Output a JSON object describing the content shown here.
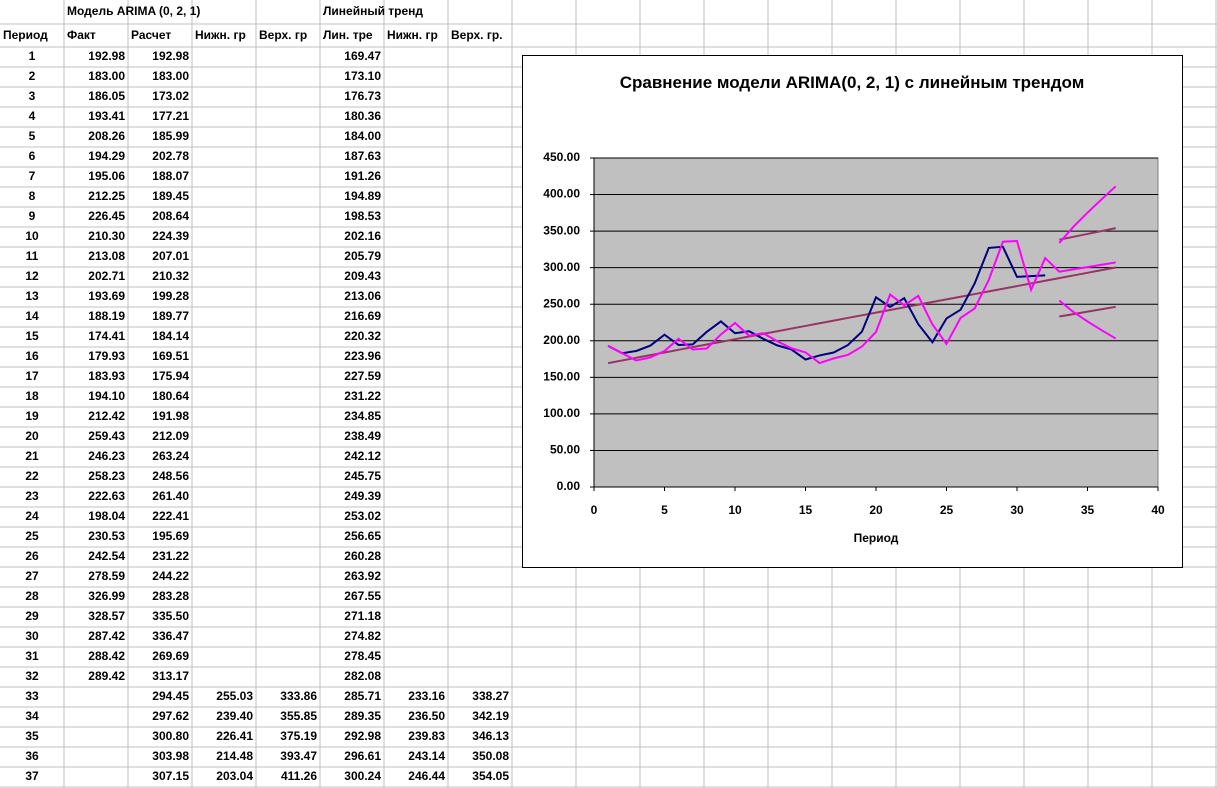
{
  "table": {
    "title_row": [
      null,
      "Модель ARIMA (0, 2, 1)",
      null,
      null,
      null,
      "Линейный тренд",
      null,
      null
    ],
    "header": [
      "Период",
      "Факт",
      "Расчет",
      "Нижн. гр",
      "Верх. гр",
      "Лин. тре",
      "Нижн. гр",
      "Верх. гр."
    ],
    "rows": [
      [
        1,
        "192.98",
        "192.98",
        null,
        null,
        "169.47",
        null,
        null
      ],
      [
        2,
        "183.00",
        "183.00",
        null,
        null,
        "173.10",
        null,
        null
      ],
      [
        3,
        "186.05",
        "173.02",
        null,
        null,
        "176.73",
        null,
        null
      ],
      [
        4,
        "193.41",
        "177.21",
        null,
        null,
        "180.36",
        null,
        null
      ],
      [
        5,
        "208.26",
        "185.99",
        null,
        null,
        "184.00",
        null,
        null
      ],
      [
        6,
        "194.29",
        "202.78",
        null,
        null,
        "187.63",
        null,
        null
      ],
      [
        7,
        "195.06",
        "188.07",
        null,
        null,
        "191.26",
        null,
        null
      ],
      [
        8,
        "212.25",
        "189.45",
        null,
        null,
        "194.89",
        null,
        null
      ],
      [
        9,
        "226.45",
        "208.64",
        null,
        null,
        "198.53",
        null,
        null
      ],
      [
        10,
        "210.30",
        "224.39",
        null,
        null,
        "202.16",
        null,
        null
      ],
      [
        11,
        "213.08",
        "207.01",
        null,
        null,
        "205.79",
        null,
        null
      ],
      [
        12,
        "202.71",
        "210.32",
        null,
        null,
        "209.43",
        null,
        null
      ],
      [
        13,
        "193.69",
        "199.28",
        null,
        null,
        "213.06",
        null,
        null
      ],
      [
        14,
        "188.19",
        "189.77",
        null,
        null,
        "216.69",
        null,
        null
      ],
      [
        15,
        "174.41",
        "184.14",
        null,
        null,
        "220.32",
        null,
        null
      ],
      [
        16,
        "179.93",
        "169.51",
        null,
        null,
        "223.96",
        null,
        null
      ],
      [
        17,
        "183.93",
        "175.94",
        null,
        null,
        "227.59",
        null,
        null
      ],
      [
        18,
        "194.10",
        "180.64",
        null,
        null,
        "231.22",
        null,
        null
      ],
      [
        19,
        "212.42",
        "191.98",
        null,
        null,
        "234.85",
        null,
        null
      ],
      [
        20,
        "259.43",
        "212.09",
        null,
        null,
        "238.49",
        null,
        null
      ],
      [
        21,
        "246.23",
        "263.24",
        null,
        null,
        "242.12",
        null,
        null
      ],
      [
        22,
        "258.23",
        "248.56",
        null,
        null,
        "245.75",
        null,
        null
      ],
      [
        23,
        "222.63",
        "261.40",
        null,
        null,
        "249.39",
        null,
        null
      ],
      [
        24,
        "198.04",
        "222.41",
        null,
        null,
        "253.02",
        null,
        null
      ],
      [
        25,
        "230.53",
        "195.69",
        null,
        null,
        "256.65",
        null,
        null
      ],
      [
        26,
        "242.54",
        "231.22",
        null,
        null,
        "260.28",
        null,
        null
      ],
      [
        27,
        "278.59",
        "244.22",
        null,
        null,
        "263.92",
        null,
        null
      ],
      [
        28,
        "326.99",
        "283.28",
        null,
        null,
        "267.55",
        null,
        null
      ],
      [
        29,
        "328.57",
        "335.50",
        null,
        null,
        "271.18",
        null,
        null
      ],
      [
        30,
        "287.42",
        "336.47",
        null,
        null,
        "274.82",
        null,
        null
      ],
      [
        31,
        "288.42",
        "269.69",
        null,
        null,
        "278.45",
        null,
        null
      ],
      [
        32,
        "289.42",
        "313.17",
        null,
        null,
        "282.08",
        null,
        null
      ],
      [
        33,
        null,
        "294.45",
        "255.03",
        "333.86",
        "285.71",
        "233.16",
        "338.27"
      ],
      [
        34,
        null,
        "297.62",
        "239.40",
        "355.85",
        "289.35",
        "236.50",
        "342.19"
      ],
      [
        35,
        null,
        "300.80",
        "226.41",
        "375.19",
        "292.98",
        "239.83",
        "346.13"
      ],
      [
        36,
        null,
        "303.98",
        "214.48",
        "393.47",
        "296.61",
        "243.14",
        "350.08"
      ],
      [
        37,
        null,
        "307.15",
        "203.04",
        "411.26",
        "300.24",
        "246.44",
        "354.05"
      ]
    ]
  },
  "chart_data": {
    "type": "line",
    "title": "Сравнение модели ARIMA(0, 2, 1) с линейным трендом",
    "x_label": "Период",
    "xlim": [
      0,
      40
    ],
    "xticks": [
      0,
      5,
      10,
      15,
      20,
      25,
      30,
      35,
      40
    ],
    "ylim": [
      0,
      450
    ],
    "yticks": [
      {
        "value": 0,
        "label": "0.00"
      },
      {
        "value": 50,
        "label": "50.00"
      },
      {
        "value": 100,
        "label": "100.00"
      },
      {
        "value": 150,
        "label": "150.00"
      },
      {
        "value": 200,
        "label": "200.00"
      },
      {
        "value": 250,
        "label": "250.00"
      },
      {
        "value": 300,
        "label": "300.00"
      },
      {
        "value": 350,
        "label": "350.00"
      },
      {
        "value": 400,
        "label": "400.00"
      },
      {
        "value": 450,
        "label": "450.00"
      }
    ],
    "grid": true,
    "x": [
      1,
      2,
      3,
      4,
      5,
      6,
      7,
      8,
      9,
      10,
      11,
      12,
      13,
      14,
      15,
      16,
      17,
      18,
      19,
      20,
      21,
      22,
      23,
      24,
      25,
      26,
      27,
      28,
      29,
      30,
      31,
      32,
      33,
      34,
      35,
      36,
      37
    ],
    "series": [
      {
        "color": "#000080",
        "values": [
          192.98,
          183.0,
          186.05,
          193.41,
          208.26,
          194.29,
          195.06,
          212.25,
          226.45,
          210.3,
          213.08,
          202.71,
          193.69,
          188.19,
          174.41,
          179.93,
          183.93,
          194.1,
          212.42,
          259.43,
          246.23,
          258.23,
          222.63,
          198.04,
          230.53,
          242.54,
          278.59,
          326.99,
          328.57,
          287.42,
          288.42,
          289.42,
          null,
          null,
          null,
          null,
          null
        ]
      },
      {
        "color": "#ff00ff",
        "values": [
          192.98,
          183.0,
          173.02,
          177.21,
          185.99,
          202.78,
          188.07,
          189.45,
          208.64,
          224.39,
          207.01,
          210.32,
          199.28,
          189.77,
          184.14,
          169.51,
          175.94,
          180.64,
          191.98,
          212.09,
          263.24,
          248.56,
          261.4,
          222.41,
          195.69,
          231.22,
          244.22,
          283.28,
          335.5,
          336.47,
          269.69,
          313.17,
          294.45,
          297.62,
          300.8,
          303.98,
          307.15
        ]
      },
      {
        "color": "#ff00ff",
        "values": [
          null,
          null,
          null,
          null,
          null,
          null,
          null,
          null,
          null,
          null,
          null,
          null,
          null,
          null,
          null,
          null,
          null,
          null,
          null,
          null,
          null,
          null,
          null,
          null,
          null,
          null,
          null,
          null,
          null,
          null,
          null,
          null,
          255.03,
          239.4,
          226.41,
          214.48,
          203.04
        ]
      },
      {
        "color": "#ff00ff",
        "values": [
          null,
          null,
          null,
          null,
          null,
          null,
          null,
          null,
          null,
          null,
          null,
          null,
          null,
          null,
          null,
          null,
          null,
          null,
          null,
          null,
          null,
          null,
          null,
          null,
          null,
          null,
          null,
          null,
          null,
          null,
          null,
          null,
          333.86,
          355.85,
          375.19,
          393.47,
          411.26
        ]
      },
      {
        "color": "#993366",
        "values": [
          169.47,
          173.1,
          176.73,
          180.36,
          184.0,
          187.63,
          191.26,
          194.89,
          198.53,
          202.16,
          205.79,
          209.43,
          213.06,
          216.69,
          220.32,
          223.96,
          227.59,
          231.22,
          234.85,
          238.49,
          242.12,
          245.75,
          249.39,
          253.02,
          256.65,
          260.28,
          263.92,
          267.55,
          271.18,
          274.82,
          278.45,
          282.08,
          285.71,
          289.35,
          292.98,
          296.61,
          300.24
        ]
      },
      {
        "color": "#993366",
        "values": [
          null,
          null,
          null,
          null,
          null,
          null,
          null,
          null,
          null,
          null,
          null,
          null,
          null,
          null,
          null,
          null,
          null,
          null,
          null,
          null,
          null,
          null,
          null,
          null,
          null,
          null,
          null,
          null,
          null,
          null,
          null,
          null,
          233.16,
          236.5,
          239.83,
          243.14,
          246.44
        ]
      },
      {
        "color": "#993366",
        "values": [
          null,
          null,
          null,
          null,
          null,
          null,
          null,
          null,
          null,
          null,
          null,
          null,
          null,
          null,
          null,
          null,
          null,
          null,
          null,
          null,
          null,
          null,
          null,
          null,
          null,
          null,
          null,
          null,
          null,
          null,
          null,
          null,
          338.27,
          342.19,
          346.13,
          350.08,
          354.05
        ]
      }
    ]
  }
}
